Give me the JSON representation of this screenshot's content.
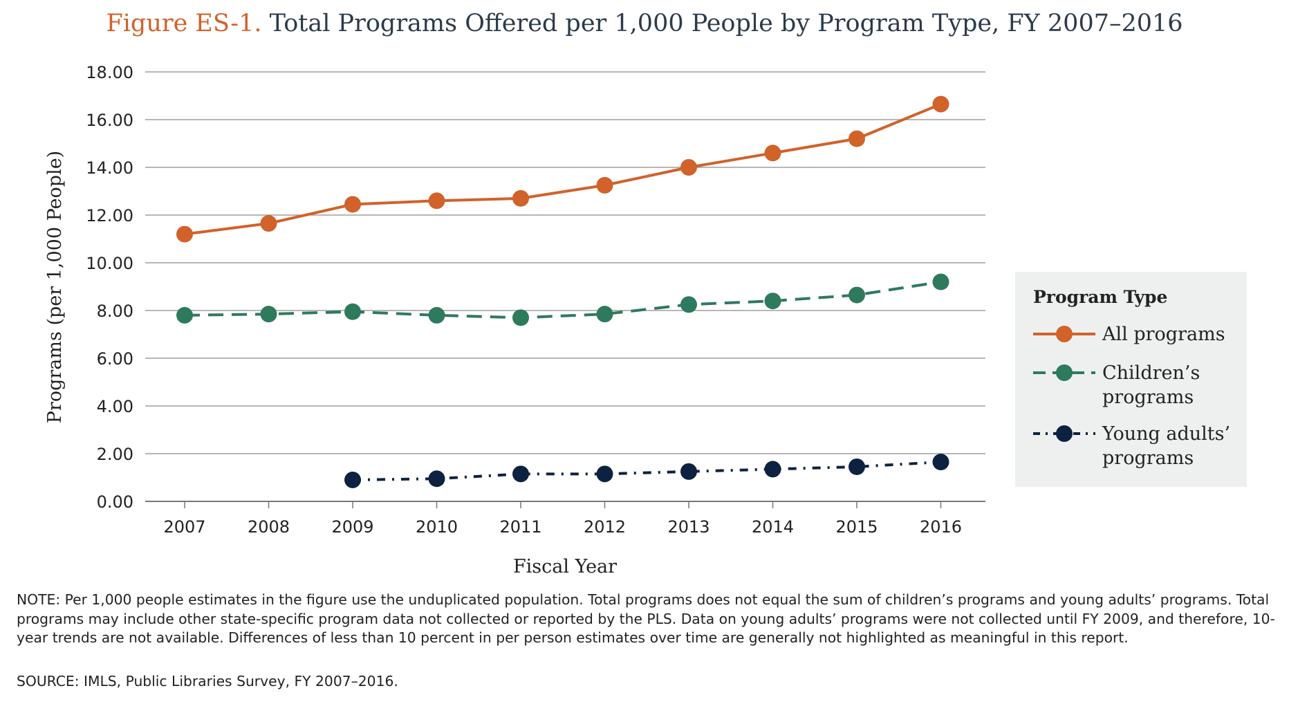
{
  "figure": {
    "label": "Figure ES-1.",
    "title": "Total Programs Offered per 1,000 People by Program Type, FY 2007–2016"
  },
  "note": "NOTE: Per 1,000 people estimates in the figure use the unduplicated population. Total programs does not equal the sum of children’s programs and young adults’ programs. Total programs may include other state-specific program data not collected or reported by the PLS. Data on young adults’ programs were not collected until FY 2009, and therefore, 10-year trends are not available. Differences of less than 10 percent in per person estimates over time are generally not highlighted as meaningful in this report.",
  "source": "SOURCE: IMLS, Public Libraries Survey, FY 2007–2016.",
  "chart_data": {
    "type": "line",
    "title": "Total Programs Offered per 1,000 People by Program Type, FY 2007–2016",
    "xlabel": "Fiscal Year",
    "ylabel": "Programs (per 1,000 People)",
    "ylim": [
      0,
      18
    ],
    "y_ticks": [
      "0.00",
      "2.00",
      "4.00",
      "6.00",
      "8.00",
      "10.00",
      "12.00",
      "14.00",
      "16.00",
      "18.00"
    ],
    "grid": true,
    "categories": [
      "2007",
      "2008",
      "2009",
      "2010",
      "2011",
      "2012",
      "2013",
      "2014",
      "2015",
      "2016"
    ],
    "legend": {
      "title": "Program Type",
      "position": "right",
      "entries": [
        {
          "key": "all",
          "label_lines": [
            "All programs"
          ]
        },
        {
          "key": "children",
          "label_lines": [
            "Children’s",
            "programs"
          ]
        },
        {
          "key": "young",
          "label_lines": [
            "Young adults’",
            "programs"
          ]
        }
      ]
    },
    "series": [
      {
        "key": "all",
        "name": "All programs",
        "color": "#d1622a",
        "style": "solid",
        "values": [
          11.2,
          11.65,
          12.45,
          12.6,
          12.7,
          13.25,
          14.0,
          14.6,
          15.2,
          16.65
        ]
      },
      {
        "key": "children",
        "name": "Children’s programs",
        "color": "#2e7a5c",
        "style": "dashed",
        "values": [
          7.8,
          7.85,
          7.95,
          7.8,
          7.7,
          7.85,
          8.25,
          8.4,
          8.65,
          9.2
        ]
      },
      {
        "key": "young",
        "name": "Young adults’ programs",
        "color": "#0d2240",
        "style": "dashdot",
        "values": [
          null,
          null,
          0.9,
          0.95,
          1.15,
          1.15,
          1.25,
          1.35,
          1.45,
          1.65
        ]
      }
    ]
  }
}
